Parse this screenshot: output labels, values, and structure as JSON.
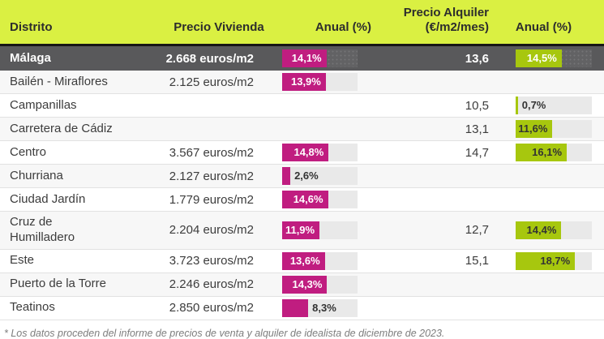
{
  "colors": {
    "header_bg": "#daf042",
    "header_text": "#2d2d2d",
    "highlight_row_bg": "#59595b",
    "magenta": "#c01d80",
    "green": "#a7c70e",
    "track_light": "#e9e9e9",
    "row_alt_bg": "#f7f7f7",
    "text_dark": "#3c3c3c",
    "border_light": "#e2e2e2",
    "footnote_color": "#7d7d7d"
  },
  "chart_data": {
    "type": "table",
    "bar_scale_max": 24,
    "headers": {
      "distrito": "Distrito",
      "precio_vivienda": "Precio Vivienda",
      "anual_vivienda": "Anual (%)",
      "precio_alquiler_line1": "Precio Alquiler",
      "precio_alquiler_line2": "(€/m2/mes)",
      "anual_alquiler": "Anual (%)"
    },
    "rows": [
      {
        "district": "Málaga",
        "highlight": true,
        "precio_vivienda": "2.668 euros/m2",
        "anual_vivienda": {
          "label": "14,1%",
          "value": 14.1,
          "inside": true
        },
        "precio_alquiler": "13,6",
        "anual_alquiler": {
          "label": "14,5%",
          "value": 14.5,
          "inside": true
        }
      },
      {
        "district": "Bailén - Miraflores",
        "highlight": false,
        "precio_vivienda": "2.125 euros/m2",
        "anual_vivienda": {
          "label": "13,9%",
          "value": 13.9,
          "inside": true
        },
        "precio_alquiler": null,
        "anual_alquiler": null
      },
      {
        "district": "Campanillas",
        "highlight": false,
        "precio_vivienda": null,
        "anual_vivienda": null,
        "precio_alquiler": "10,5",
        "anual_alquiler": {
          "label": "0,7%",
          "value": 0.7,
          "inside": false
        }
      },
      {
        "district": "Carretera de Cádiz",
        "highlight": false,
        "precio_vivienda": null,
        "anual_vivienda": null,
        "precio_alquiler": "13,1",
        "anual_alquiler": {
          "label": "11,6%",
          "value": 11.6,
          "inside": true
        }
      },
      {
        "district": "Centro",
        "highlight": false,
        "precio_vivienda": "3.567 euros/m2",
        "anual_vivienda": {
          "label": "14,8%",
          "value": 14.8,
          "inside": true
        },
        "precio_alquiler": "14,7",
        "anual_alquiler": {
          "label": "16,1%",
          "value": 16.1,
          "inside": true
        }
      },
      {
        "district": "Churriana",
        "highlight": false,
        "precio_vivienda": "2.127 euros/m2",
        "anual_vivienda": {
          "label": "2,6%",
          "value": 2.6,
          "inside": false
        },
        "precio_alquiler": null,
        "anual_alquiler": null
      },
      {
        "district": "Ciudad Jardín",
        "highlight": false,
        "precio_vivienda": "1.779 euros/m2",
        "anual_vivienda": {
          "label": "14,6%",
          "value": 14.6,
          "inside": true
        },
        "precio_alquiler": null,
        "anual_alquiler": null
      },
      {
        "district": "Cruz de\nHumilladero",
        "highlight": false,
        "precio_vivienda": "2.204 euros/m2",
        "anual_vivienda": {
          "label": "11,9%",
          "value": 11.9,
          "inside": true
        },
        "precio_alquiler": "12,7",
        "anual_alquiler": {
          "label": "14,4%",
          "value": 14.4,
          "inside": true
        }
      },
      {
        "district": "Este",
        "highlight": false,
        "precio_vivienda": "3.723 euros/m2",
        "anual_vivienda": {
          "label": "13,6%",
          "value": 13.6,
          "inside": true
        },
        "precio_alquiler": "15,1",
        "anual_alquiler": {
          "label": "18,7%",
          "value": 18.7,
          "inside": true
        }
      },
      {
        "district": "Puerto de la Torre",
        "highlight": false,
        "precio_vivienda": "2.246 euros/m2",
        "anual_vivienda": {
          "label": "14,3%",
          "value": 14.3,
          "inside": true
        },
        "precio_alquiler": null,
        "anual_alquiler": null
      },
      {
        "district": "Teatinos",
        "highlight": false,
        "precio_vivienda": "2.850 euros/m2",
        "anual_vivienda": {
          "label": "8,3%",
          "value": 8.3,
          "inside": false
        },
        "precio_alquiler": null,
        "anual_alquiler": null
      }
    ]
  },
  "footnote": "* Los datos proceden del informe de precios de venta y alquiler de idealista de diciembre de 2023."
}
